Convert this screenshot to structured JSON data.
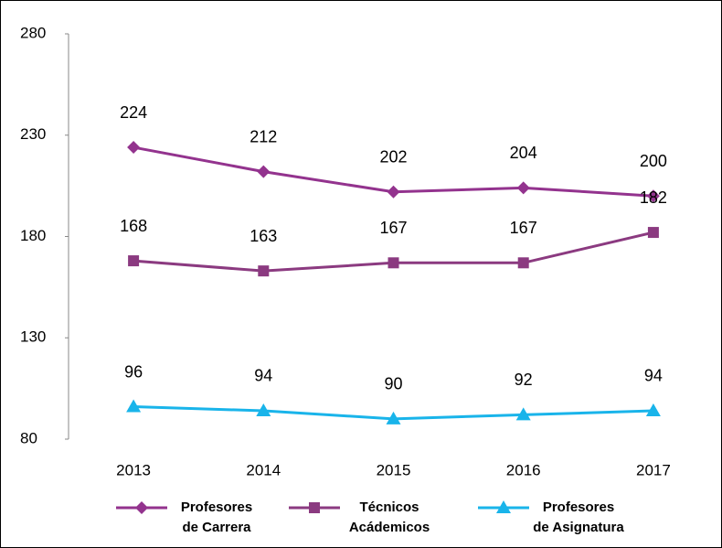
{
  "chart_data": {
    "type": "line",
    "categories": [
      "2013",
      "2014",
      "2015",
      "2016",
      "2017"
    ],
    "series": [
      {
        "name": "Profesores\nde Carrera",
        "color": "#93338e",
        "marker": "diamond",
        "values": [
          224,
          212,
          202,
          204,
          200
        ]
      },
      {
        "name": "Técnicos\nAcádemicos",
        "color": "#8b3a80",
        "marker": "square",
        "values": [
          168,
          163,
          167,
          167,
          182
        ]
      },
      {
        "name": "Profesores\nde Asignatura",
        "color": "#19b4ea",
        "marker": "triangle",
        "values": [
          96,
          94,
          90,
          92,
          94
        ]
      }
    ],
    "ylim": [
      80,
      280
    ],
    "yticks": [
      80,
      130,
      180,
      230,
      280
    ],
    "grid": false,
    "legend": "bottom"
  }
}
